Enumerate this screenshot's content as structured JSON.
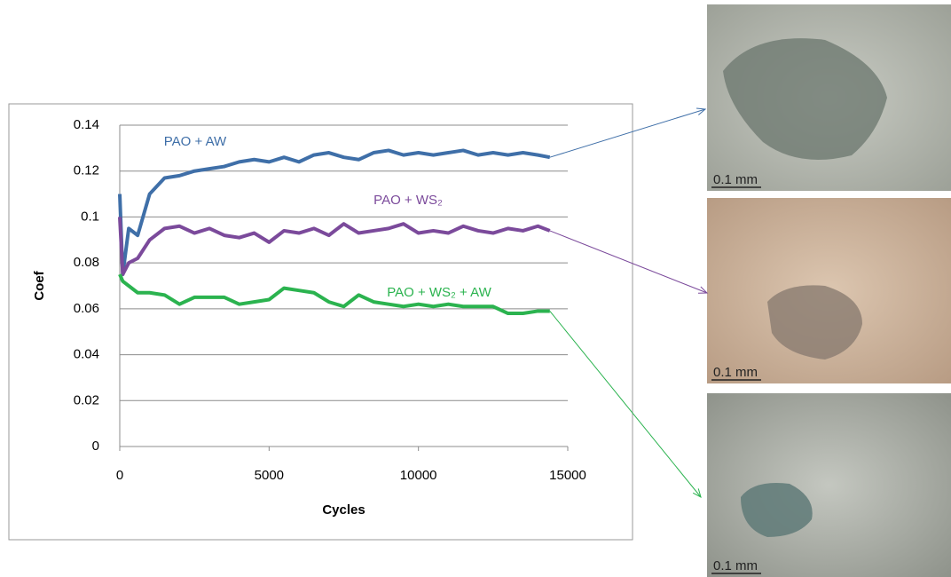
{
  "chart_data": {
    "type": "line",
    "x_label": "Cycles",
    "y_label": "Coef",
    "x": [
      0,
      100,
      300,
      600,
      1000,
      1500,
      2000,
      2500,
      3000,
      3500,
      4000,
      4500,
      5000,
      5500,
      6000,
      6500,
      7000,
      7500,
      8000,
      8500,
      9000,
      9500,
      10000,
      10500,
      11000,
      11500,
      12000,
      12500,
      13000,
      13500,
      14000,
      14400
    ],
    "series": [
      {
        "name": "PAO + AW",
        "color": "#3f6fa8",
        "values": [
          0.11,
          0.075,
          0.095,
          0.092,
          0.11,
          0.117,
          0.118,
          0.12,
          0.121,
          0.122,
          0.124,
          0.125,
          0.124,
          0.126,
          0.124,
          0.127,
          0.128,
          0.126,
          0.125,
          0.128,
          0.129,
          0.127,
          0.128,
          0.127,
          0.128,
          0.129,
          0.127,
          0.128,
          0.127,
          0.128,
          0.127,
          0.126
        ]
      },
      {
        "name": "PAO + WS₂",
        "color": "#7b4a9b",
        "values": [
          0.1,
          0.075,
          0.08,
          0.082,
          0.09,
          0.095,
          0.096,
          0.093,
          0.095,
          0.092,
          0.091,
          0.093,
          0.089,
          0.094,
          0.093,
          0.095,
          0.092,
          0.097,
          0.093,
          0.094,
          0.095,
          0.097,
          0.093,
          0.094,
          0.093,
          0.096,
          0.094,
          0.093,
          0.095,
          0.094,
          0.096,
          0.094
        ]
      },
      {
        "name": "PAO + WS₂ + AW",
        "color": "#2bb34f",
        "values": [
          0.075,
          0.072,
          0.07,
          0.067,
          0.067,
          0.066,
          0.062,
          0.065,
          0.065,
          0.065,
          0.062,
          0.063,
          0.064,
          0.069,
          0.068,
          0.067,
          0.063,
          0.061,
          0.066,
          0.063,
          0.062,
          0.061,
          0.062,
          0.061,
          0.062,
          0.061,
          0.061,
          0.061,
          0.058,
          0.058,
          0.059,
          0.059
        ]
      }
    ],
    "xlim": [
      0,
      15000
    ],
    "xticks": [
      0,
      5000,
      10000,
      15000
    ],
    "ylim": [
      0,
      0.14
    ],
    "yticks": [
      0,
      0.02,
      0.04,
      0.06,
      0.08,
      0.1,
      0.12,
      0.14
    ],
    "grid": true
  },
  "images": [
    {
      "scale_label": "0.1 mm"
    },
    {
      "scale_label": "0.1 mm"
    },
    {
      "scale_label": "0.1 mm"
    }
  ]
}
